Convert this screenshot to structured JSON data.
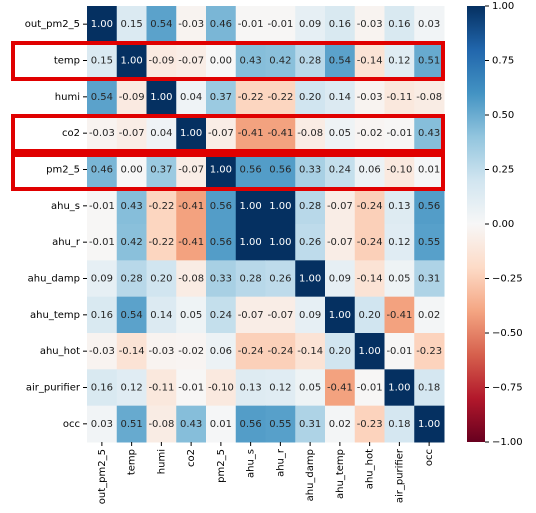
{
  "chart_data": {
    "type": "heatmap",
    "categories": [
      "out_pm2_5",
      "temp",
      "humi",
      "co2",
      "pm2_5",
      "ahu_s",
      "ahu_r",
      "ahu_damp",
      "ahu_temp",
      "ahu_hot",
      "air_purifier",
      "occ"
    ],
    "values": [
      [
        1,
        0.15,
        0.54,
        -0.03,
        0.46,
        -0.01,
        -0.01,
        0.09,
        0.16,
        -0.03,
        0.16,
        0.03
      ],
      [
        0.15,
        1,
        -0.09,
        -0.07,
        0,
        0.43,
        0.42,
        0.28,
        0.54,
        -0.14,
        0.12,
        0.51
      ],
      [
        0.54,
        -0.09,
        1,
        0.04,
        0.37,
        -0.22,
        -0.22,
        0.2,
        0.14,
        -0.03,
        -0.11,
        -0.08
      ],
      [
        -0.03,
        -0.07,
        0.04,
        1,
        -0.07,
        -0.41,
        -0.41,
        -0.08,
        0.05,
        -0.02,
        -0.01,
        0.43
      ],
      [
        0.46,
        0,
        0.37,
        -0.07,
        1,
        0.56,
        0.56,
        0.33,
        0.24,
        0.06,
        -0.1,
        0.01
      ],
      [
        -0.01,
        0.43,
        -0.22,
        -0.41,
        0.56,
        1,
        1,
        0.28,
        -0.07,
        -0.24,
        0.13,
        0.56
      ],
      [
        -0.01,
        0.42,
        -0.22,
        -0.41,
        0.56,
        1,
        1,
        0.26,
        -0.07,
        -0.24,
        0.12,
        0.55
      ],
      [
        0.09,
        0.28,
        0.2,
        -0.08,
        0.33,
        0.28,
        0.26,
        1,
        0.09,
        -0.14,
        0.05,
        0.31
      ],
      [
        0.16,
        0.54,
        0.14,
        0.05,
        0.24,
        -0.07,
        -0.07,
        0.09,
        1,
        0.2,
        -0.41,
        0.02
      ],
      [
        -0.03,
        -0.14,
        -0.03,
        -0.02,
        0.06,
        -0.24,
        -0.24,
        -0.14,
        0.2,
        1,
        -0.01,
        -0.23
      ],
      [
        0.16,
        0.12,
        -0.11,
        -0.01,
        -0.1,
        0.13,
        0.12,
        0.05,
        -0.41,
        -0.01,
        1,
        0.18
      ],
      [
        0.03,
        0.51,
        -0.08,
        0.43,
        0.01,
        0.56,
        0.55,
        0.31,
        0.02,
        -0.23,
        0.18,
        1
      ]
    ],
    "value_labels": [
      [
        "1.00",
        "0.15",
        "0.54",
        "-0.03",
        "0.46",
        "-0.01",
        "-0.01",
        "0.09",
        "0.16",
        "-0.03",
        "0.16",
        "0.03"
      ],
      [
        "0.15",
        "1.00",
        "-0.09",
        "-0.07",
        "0.00",
        "0.43",
        "0.42",
        "0.28",
        "0.54",
        "-0.14",
        "0.12",
        "0.51"
      ],
      [
        "0.54",
        "-0.09",
        "1.00",
        "0.04",
        "0.37",
        "-0.22",
        "-0.22",
        "0.20",
        "0.14",
        "-0.03",
        "-0.11",
        "-0.08"
      ],
      [
        "-0.03",
        "-0.07",
        "0.04",
        "1.00",
        "-0.07",
        "-0.41",
        "-0.41",
        "-0.08",
        "0.05",
        "-0.02",
        "-0.01",
        "0.43"
      ],
      [
        "0.46",
        "0.00",
        "0.37",
        "-0.07",
        "1.00",
        "0.56",
        "0.56",
        "0.33",
        "0.24",
        "0.06",
        "-0.10",
        "0.01"
      ],
      [
        "-0.01",
        "0.43",
        "-0.22",
        "-0.41",
        "0.56",
        "1.00",
        "1.00",
        "0.28",
        "-0.07",
        "-0.24",
        "0.13",
        "0.56"
      ],
      [
        "-0.01",
        "0.42",
        "-0.22",
        "-0.41",
        "0.56",
        "1.00",
        "1.00",
        "0.26",
        "-0.07",
        "-0.24",
        "0.12",
        "0.55"
      ],
      [
        "0.09",
        "0.28",
        "0.20",
        "-0.08",
        "0.33",
        "0.28",
        "0.26",
        "1.00",
        "0.09",
        "-0.14",
        "0.05",
        "0.31"
      ],
      [
        "0.16",
        "0.54",
        "0.14",
        "0.05",
        "0.24",
        "-0.07",
        "-0.07",
        "0.09",
        "1.00",
        "0.20",
        "-0.41",
        "0.02"
      ],
      [
        "-0.03",
        "-0.14",
        "-0.03",
        "-0.02",
        "0.06",
        "-0.24",
        "-0.24",
        "-0.14",
        "0.20",
        "1.00",
        "-0.01",
        "-0.23"
      ],
      [
        "0.16",
        "0.12",
        "-0.11",
        "-0.01",
        "-0.10",
        "0.13",
        "0.12",
        "0.05",
        "-0.41",
        "-0.01",
        "1.00",
        "0.18"
      ],
      [
        "0.03",
        "0.51",
        "-0.08",
        "0.43",
        "0.01",
        "0.56",
        "0.55",
        "0.31",
        "0.02",
        "-0.23",
        "0.18",
        "1.00"
      ]
    ],
    "zlim": [
      -1,
      1
    ],
    "zticks": [
      {
        "value": -1,
        "label": "−1.00"
      },
      {
        "value": -0.75,
        "label": "−0.75"
      },
      {
        "value": -0.5,
        "label": "−0.50"
      },
      {
        "value": -0.25,
        "label": "−0.25"
      },
      {
        "value": 0,
        "label": "0.00"
      },
      {
        "value": 0.25,
        "label": "0.25"
      },
      {
        "value": 0.5,
        "label": "0.50"
      },
      {
        "value": 0.75,
        "label": "0.75"
      },
      {
        "value": 1,
        "label": "1.00"
      }
    ],
    "colorscale": [
      "#67001f",
      "#b2182b",
      "#d6604d",
      "#f4a582",
      "#fddbc7",
      "#f7f7f7",
      "#d1e5f0",
      "#92c5de",
      "#4393c3",
      "#2166ac",
      "#053061"
    ]
  }
}
